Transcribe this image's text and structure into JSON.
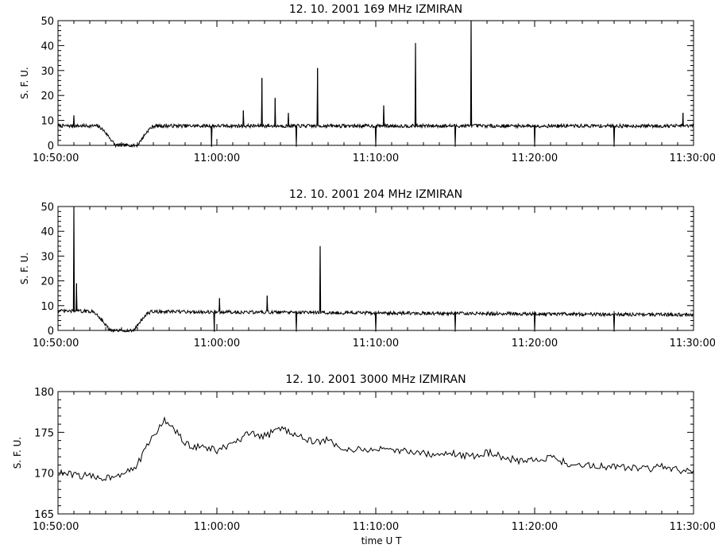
{
  "chart_data": [
    {
      "type": "line",
      "title": "12.  10.  2001    169  MHz    IZMIRAN",
      "xlabel": "",
      "ylabel": "S. F. U.",
      "xlim": [
        "10:50:00",
        "11:30:00"
      ],
      "ylim": [
        0,
        50
      ],
      "x_ticks": [
        "10:50:00",
        "11:00:00",
        "11:10:00",
        "11:20:00",
        "11:30:00"
      ],
      "y_ticks": [
        0,
        10,
        20,
        30,
        40,
        50
      ],
      "baseline_sfu": 7.8,
      "dip": {
        "start": "10:52:20",
        "min": "10:54:20",
        "end": "10:56:10",
        "min_value": 0
      },
      "spikes": [
        {
          "t": "10:51:00",
          "v": 12
        },
        {
          "t": "11:01:40",
          "v": 14
        },
        {
          "t": "11:02:50",
          "v": 27
        },
        {
          "t": "11:03:40",
          "v": 19
        },
        {
          "t": "11:04:30",
          "v": 13
        },
        {
          "t": "11:06:20",
          "v": 31
        },
        {
          "t": "11:10:30",
          "v": 16
        },
        {
          "t": "11:12:30",
          "v": 41
        },
        {
          "t": "11:16:00",
          "v": 50
        },
        {
          "t": "11:29:20",
          "v": 13
        }
      ],
      "down_ticks": [
        "10:59:40",
        "11:05:00",
        "11:10:00",
        "11:15:00",
        "11:20:00",
        "11:25:00"
      ]
    },
    {
      "type": "line",
      "title": "12.  10.  2001    204  MHz    IZMIRAN",
      "xlabel": "",
      "ylabel": "S. F. U.",
      "xlim": [
        "10:50:00",
        "11:30:00"
      ],
      "ylim": [
        0,
        50
      ],
      "x_ticks": [
        "10:50:00",
        "11:00:00",
        "11:10:00",
        "11:20:00",
        "11:30:00"
      ],
      "y_ticks": [
        0,
        10,
        20,
        30,
        40,
        50
      ],
      "baseline_sfu": 7.8,
      "dip": {
        "start": "10:52:00",
        "min": "10:54:00",
        "end": "10:56:00",
        "min_value": 0
      },
      "spikes": [
        {
          "t": "10:51:00",
          "v": 50
        },
        {
          "t": "10:51:10",
          "v": 19
        },
        {
          "t": "11:00:10",
          "v": 13
        },
        {
          "t": "11:03:10",
          "v": 14
        },
        {
          "t": "11:06:30",
          "v": 34
        }
      ],
      "down_ticks": [
        "10:59:50",
        "11:05:00",
        "11:10:00",
        "11:15:00",
        "11:20:00",
        "11:25:00"
      ]
    },
    {
      "type": "line",
      "title": "12.  10.  2001    3000  MHz    IZMIRAN",
      "xlabel": "time   U T",
      "ylabel": "S. F. U.",
      "xlim": [
        "10:50:00",
        "11:30:00"
      ],
      "ylim": [
        165,
        180
      ],
      "x_ticks": [
        "10:50:00",
        "11:00:00",
        "11:10:00",
        "11:20:00",
        "11:30:00"
      ],
      "y_ticks": [
        165,
        170,
        175,
        180
      ],
      "points": [
        {
          "t": "10:50:00",
          "v": 170.0
        },
        {
          "t": "10:51:00",
          "v": 169.8
        },
        {
          "t": "10:52:00",
          "v": 169.6
        },
        {
          "t": "10:53:00",
          "v": 169.4
        },
        {
          "t": "10:54:00",
          "v": 170.0
        },
        {
          "t": "10:55:00",
          "v": 171.0
        },
        {
          "t": "10:55:40",
          "v": 173.5
        },
        {
          "t": "10:56:20",
          "v": 175.5
        },
        {
          "t": "10:56:40",
          "v": 176.5
        },
        {
          "t": "10:57:30",
          "v": 175.0
        },
        {
          "t": "10:58:00",
          "v": 173.5
        },
        {
          "t": "10:59:00",
          "v": 173.2
        },
        {
          "t": "11:00:00",
          "v": 172.8
        },
        {
          "t": "11:01:00",
          "v": 173.5
        },
        {
          "t": "11:02:00",
          "v": 174.8
        },
        {
          "t": "11:03:00",
          "v": 174.5
        },
        {
          "t": "11:04:00",
          "v": 175.5
        },
        {
          "t": "11:05:00",
          "v": 174.8
        },
        {
          "t": "11:06:00",
          "v": 173.8
        },
        {
          "t": "11:07:00",
          "v": 174.0
        },
        {
          "t": "11:08:00",
          "v": 173.0
        },
        {
          "t": "11:09:00",
          "v": 172.8
        },
        {
          "t": "11:10:00",
          "v": 173.0
        },
        {
          "t": "11:11:00",
          "v": 172.6
        },
        {
          "t": "11:12:00",
          "v": 172.8
        },
        {
          "t": "11:13:00",
          "v": 172.4
        },
        {
          "t": "11:14:00",
          "v": 172.2
        },
        {
          "t": "11:15:00",
          "v": 172.4
        },
        {
          "t": "11:16:00",
          "v": 172.0
        },
        {
          "t": "11:17:00",
          "v": 172.6
        },
        {
          "t": "11:18:00",
          "v": 172.0
        },
        {
          "t": "11:19:00",
          "v": 171.5
        },
        {
          "t": "11:20:00",
          "v": 171.6
        },
        {
          "t": "11:21:00",
          "v": 172.0
        },
        {
          "t": "11:22:00",
          "v": 171.2
        },
        {
          "t": "11:23:00",
          "v": 171.0
        },
        {
          "t": "11:24:00",
          "v": 170.8
        },
        {
          "t": "11:25:00",
          "v": 170.9
        },
        {
          "t": "11:26:00",
          "v": 170.6
        },
        {
          "t": "11:27:00",
          "v": 170.5
        },
        {
          "t": "11:28:00",
          "v": 170.8
        },
        {
          "t": "11:29:00",
          "v": 170.4
        },
        {
          "t": "11:30:00",
          "v": 170.0
        }
      ]
    }
  ]
}
